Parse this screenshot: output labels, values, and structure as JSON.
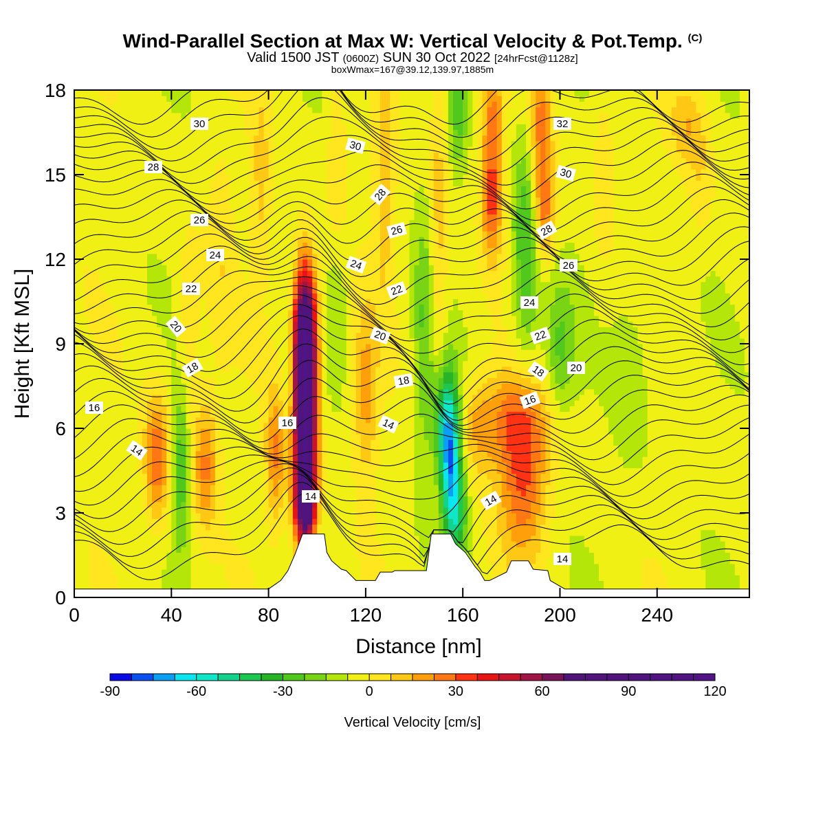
{
  "header": {
    "title_main": "Wind-Parallel Section at Max W: Vertical Velocity & Pot.Temp.",
    "title_mark": "(C)",
    "subtitle_a": "Valid 1500 JST",
    "subtitle_b": "(0600Z)",
    "subtitle_c": "SUN 30 Oct 2022",
    "subtitle_d": "[24hrFcst@1128z]",
    "subtitle_line3": "boxWmax=167@39.12,139.97,1885m"
  },
  "chart_data": {
    "type": "heatmap",
    "title": "Wind-Parallel Section at Max W: Vertical Velocity & Pot.Temp.",
    "xlabel": "Distance [nm]",
    "ylabel": "Height [Kft MSL]",
    "xlim": [
      0,
      278
    ],
    "ylim": [
      0,
      18
    ],
    "x_ticks": [
      0,
      40,
      80,
      120,
      160,
      200,
      240
    ],
    "y_ticks": [
      0,
      3,
      6,
      9,
      12,
      15,
      18
    ],
    "colorbar": {
      "label": "Vertical Velocity [cm/s]",
      "ticks": [
        -90,
        -60,
        -30,
        0,
        30,
        60,
        90,
        120
      ],
      "min": -90,
      "max": 120,
      "step": 7.5,
      "colors": [
        "#0a0ae6",
        "#0a50f0",
        "#0a9ef5",
        "#0ae6f0",
        "#10e6c8",
        "#14d28c",
        "#1ec850",
        "#28b428",
        "#50c81e",
        "#78d414",
        "#b4e60a",
        "#f0f014",
        "#ffe61e",
        "#ffc814",
        "#ffa00a",
        "#ff7814",
        "#ff3214",
        "#e61414",
        "#c8142d",
        "#a01446",
        "#78145a",
        "#501478",
        "#50147a",
        "#50147c",
        "#50147e",
        "#501480",
        "#501482",
        "#501484"
      ]
    },
    "background_value": -4,
    "w_features": [
      {
        "x": 95,
        "z": 6.3,
        "sx": 3.2,
        "sz": 2.8,
        "w": 120
      },
      {
        "x": 95,
        "z": 9.6,
        "sx": 3.4,
        "sz": 1.6,
        "w": 60
      },
      {
        "x": 95,
        "z": 3.4,
        "sx": 3.0,
        "sz": 1.0,
        "w": 50
      },
      {
        "x": 83,
        "z": 5.0,
        "sx": 3.0,
        "sz": 1.8,
        "w": 28
      },
      {
        "x": 34,
        "z": 4.9,
        "sx": 3.6,
        "sz": 1.6,
        "w": 34
      },
      {
        "x": 54,
        "z": 4.8,
        "sx": 3.6,
        "sz": 1.6,
        "w": 28
      },
      {
        "x": 185,
        "z": 4.2,
        "sx": 7.0,
        "sz": 2.0,
        "w": 34
      },
      {
        "x": 180,
        "z": 6.4,
        "sx": 10.0,
        "sz": 1.2,
        "w": 22
      },
      {
        "x": 166,
        "z": 6.0,
        "sx": 5.0,
        "sz": 1.2,
        "w": 16
      },
      {
        "x": 172,
        "z": 16.5,
        "sx": 3.2,
        "sz": 2.4,
        "w": 30
      },
      {
        "x": 192,
        "z": 16.5,
        "sx": 3.2,
        "sz": 2.4,
        "w": 30
      },
      {
        "x": 172,
        "z": 13.8,
        "sx": 3.0,
        "sz": 1.2,
        "w": 20
      },
      {
        "x": 194,
        "z": 13.6,
        "sx": 3.0,
        "sz": 1.2,
        "w": 22
      },
      {
        "x": 120,
        "z": 7.2,
        "sx": 3.4,
        "sz": 2.2,
        "w": 22
      },
      {
        "x": 128,
        "z": 14.6,
        "sx": 3.0,
        "sz": 3.0,
        "w": 16
      },
      {
        "x": 108,
        "z": 15.0,
        "sx": 2.6,
        "sz": 3.0,
        "w": 14
      },
      {
        "x": 77,
        "z": 14.6,
        "sx": 3.0,
        "sz": 2.6,
        "w": 14
      },
      {
        "x": 150,
        "z": 12.6,
        "sx": 2.6,
        "sz": 5.0,
        "w": 16
      },
      {
        "x": 252,
        "z": 16.8,
        "sx": 5.0,
        "sz": 1.0,
        "w": 16
      },
      {
        "x": 258,
        "z": 14.8,
        "sx": 4.0,
        "sz": 1.6,
        "w": 10
      },
      {
        "x": 218,
        "z": 15.4,
        "sx": 3.5,
        "sz": 2.5,
        "w": 10
      },
      {
        "x": 47,
        "z": 9.4,
        "sx": 3.0,
        "sz": 2.2,
        "w": 14
      },
      {
        "x": 60,
        "z": 12.4,
        "sx": 4.0,
        "sz": 3.0,
        "w": 8
      },
      {
        "x": 155,
        "z": 4.8,
        "sx": 3.0,
        "sz": 1.8,
        "w": -58
      },
      {
        "x": 152,
        "z": 6.4,
        "sx": 3.4,
        "sz": 1.4,
        "w": -34
      },
      {
        "x": 158,
        "z": 3.0,
        "sx": 3.0,
        "sz": 1.2,
        "w": -26
      },
      {
        "x": 44,
        "z": 4.6,
        "sx": 2.4,
        "sz": 2.0,
        "w": -26
      },
      {
        "x": 186,
        "z": 12.4,
        "sx": 4.0,
        "sz": 3.0,
        "w": -28
      },
      {
        "x": 200,
        "z": 8.8,
        "sx": 4.5,
        "sz": 1.6,
        "w": -20
      },
      {
        "x": 144,
        "z": 9.2,
        "sx": 3.0,
        "sz": 3.2,
        "w": -18
      },
      {
        "x": 158,
        "z": 17.4,
        "sx": 2.6,
        "sz": 1.6,
        "w": -20
      },
      {
        "x": 108,
        "z": 11.0,
        "sx": 3.0,
        "sz": 2.0,
        "w": -14
      },
      {
        "x": 230,
        "z": 8.0,
        "sx": 6.0,
        "sz": 3.0,
        "w": -8
      },
      {
        "x": 88,
        "z": 8.0,
        "sx": 2.0,
        "sz": 2.0,
        "w": -10
      }
    ],
    "terrain_profile": {
      "x": [
        0,
        80,
        85,
        88,
        91,
        94,
        103,
        104,
        106,
        110,
        112,
        116,
        118,
        124,
        126,
        131,
        132,
        145,
        147,
        155,
        157,
        161,
        163,
        165,
        167,
        169,
        171,
        178,
        180,
        187,
        189,
        195,
        196,
        202,
        278
      ],
      "z": [
        0.3,
        0.3,
        0.6,
        0.95,
        1.55,
        2.25,
        2.25,
        1.6,
        1.3,
        1.0,
        0.95,
        0.6,
        0.6,
        0.6,
        0.9,
        0.9,
        0.95,
        0.95,
        2.25,
        2.25,
        1.9,
        1.6,
        1.35,
        1.1,
        0.9,
        0.6,
        0.6,
        0.9,
        1.3,
        1.3,
        1.0,
        0.95,
        0.6,
        0.3,
        0.3
      ]
    },
    "theta_contours": {
      "levels_start": 13,
      "levels_end": 32,
      "level_height_km": 0.85,
      "annotated_values": [
        "30",
        "28",
        "26",
        "24",
        "22",
        "20",
        "18",
        "16",
        "14",
        "30",
        "28",
        "26",
        "24",
        "22",
        "20",
        "18",
        "16",
        "14",
        "32",
        "30",
        "28",
        "26",
        "24",
        "22",
        "20",
        "18",
        "16",
        "14"
      ]
    }
  }
}
